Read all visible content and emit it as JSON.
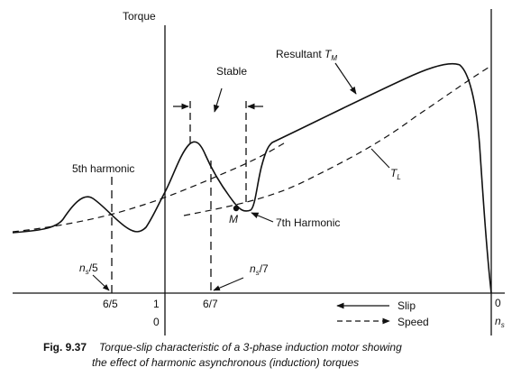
{
  "labels": {
    "torque": "Torque",
    "stable": "Stable",
    "resultant": "Resultant",
    "resultant_symbol": "T",
    "resultant_sub": "M",
    "load_symbol": "T",
    "load_sub": "L",
    "fifth": "5th harmonic",
    "seventh": "7th Harmonic",
    "m_point": "M",
    "ns5_n": "n",
    "ns5_sub": "s",
    "ns5_tail": "/5",
    "ns7_n": "n",
    "ns7_sub": "s",
    "ns7_tail": "/7",
    "tick_6_5": "6/5",
    "tick_1": "1",
    "tick_6_7": "6/7",
    "tick_0_right": "0",
    "tick_0_left": "0",
    "slip": "Slip",
    "speed": "Speed",
    "ns_n": "n",
    "ns_sub": "s"
  },
  "caption": {
    "number": "Fig. 9.37",
    "line1": "Torque-slip characteristic of a 3-phase induction motor showing",
    "line2": "the effect of harmonic asynchronous (induction) torques"
  }
}
